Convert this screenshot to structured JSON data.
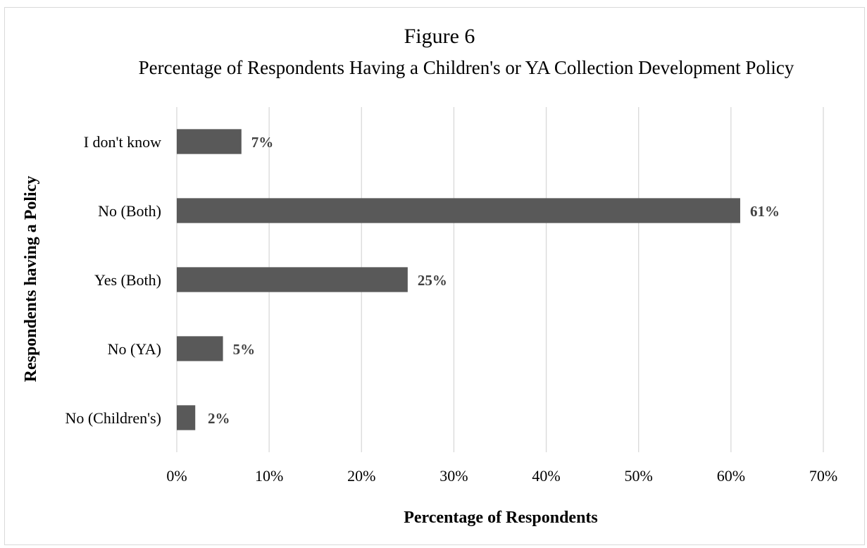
{
  "chart_data": {
    "type": "bar",
    "orientation": "horizontal",
    "title": "Figure 6",
    "subtitle": "Percentage of Respondents Having a Children's or YA Collection Development Policy",
    "xlabel": "Percentage of Respondents",
    "ylabel": "Respondents having a Policy",
    "categories": [
      "I don't know",
      "No (Both)",
      "Yes (Both)",
      "No (YA)",
      "No (Children's)"
    ],
    "values": [
      7,
      61,
      25,
      5,
      2
    ],
    "data_labels": [
      "7%",
      "61%",
      "25%",
      "5%",
      "2%"
    ],
    "xlim": [
      0,
      70
    ],
    "x_ticks": [
      "0%",
      "10%",
      "20%",
      "30%",
      "40%",
      "50%",
      "60%",
      "70%"
    ],
    "grid": true,
    "legend": "none",
    "bar_color": "#595959",
    "grid_color": "#d9d9d9"
  }
}
